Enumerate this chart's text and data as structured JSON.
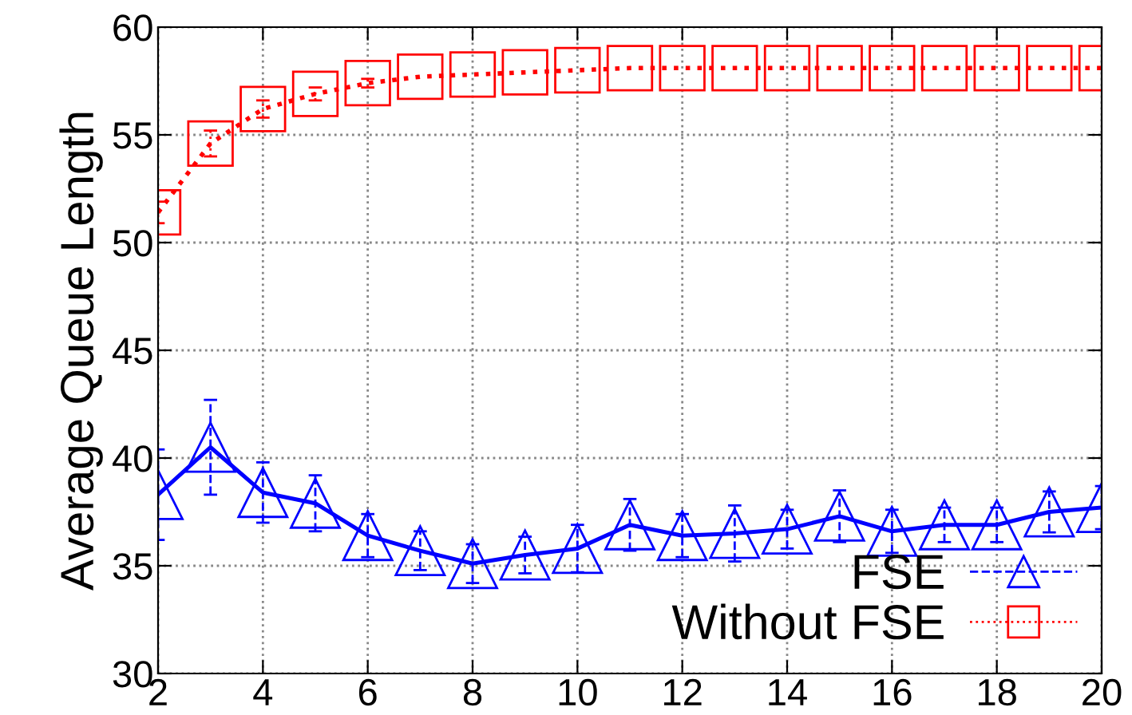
{
  "chart_data": {
    "type": "line",
    "ylabel": "Average Queue Length",
    "x": [
      2,
      3,
      4,
      5,
      6,
      7,
      8,
      9,
      10,
      11,
      12,
      13,
      14,
      15,
      16,
      17,
      18,
      19,
      20
    ],
    "series": [
      {
        "name": "FSE",
        "color": "#0000ff",
        "marker": "triangle",
        "line_style": "solid",
        "values": [
          38.3,
          40.5,
          38.4,
          37.9,
          36.4,
          35.7,
          35.1,
          35.5,
          35.8,
          36.9,
          36.4,
          36.5,
          36.7,
          37.3,
          36.6,
          36.9,
          36.9,
          37.5,
          37.7
        ],
        "errors": [
          2.1,
          2.2,
          1.4,
          1.3,
          1.0,
          0.9,
          0.9,
          0.85,
          1.1,
          1.2,
          1.0,
          1.3,
          0.9,
          1.2,
          1.0,
          0.8,
          0.8,
          0.95,
          1.0
        ]
      },
      {
        "name": "Without FSE",
        "color": "#ff0000",
        "marker": "square",
        "line_style": "dotted",
        "values": [
          51.4,
          54.6,
          56.2,
          56.9,
          57.4,
          57.7,
          57.8,
          57.9,
          58.0,
          58.1,
          58.1,
          58.1,
          58.1,
          58.1,
          58.1,
          58.1,
          58.1,
          58.1,
          58.1
        ],
        "errors": [
          0.5,
          0.6,
          0.4,
          0.3,
          0.2,
          null,
          null,
          null,
          null,
          null,
          null,
          null,
          null,
          null,
          null,
          null,
          null,
          null,
          null
        ]
      }
    ],
    "xlim": [
      2,
      20
    ],
    "xticks": [
      2,
      4,
      6,
      8,
      10,
      12,
      14,
      16,
      18,
      20
    ],
    "ylim": [
      30,
      60
    ],
    "yticks": [
      30,
      35,
      40,
      45,
      50,
      55,
      60
    ],
    "grid": true,
    "legend": "bottom right"
  }
}
